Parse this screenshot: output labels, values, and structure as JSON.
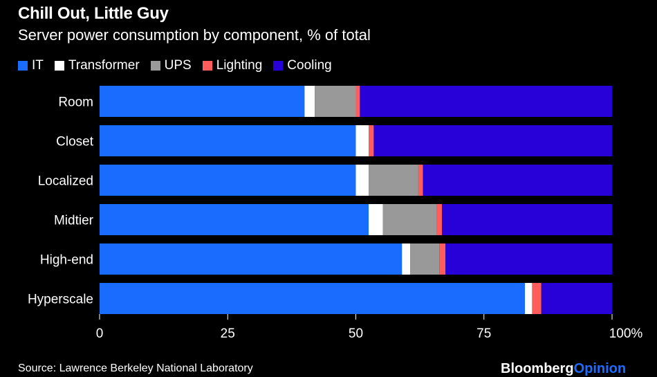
{
  "chart_data": {
    "type": "bar",
    "orientation": "horizontal",
    "stacked": true,
    "title": "Chill Out, Little Guy",
    "subtitle": "Server power consumption by component, % of total",
    "categories": [
      "Room",
      "Closet",
      "Localized",
      "Midtier",
      "High-end",
      "Hyperscale"
    ],
    "series": [
      {
        "name": "IT",
        "color": "#1a6cff",
        "values": [
          40,
          50,
          50,
          52.5,
          59,
          83
        ]
      },
      {
        "name": "Transformer",
        "color": "#ffffff",
        "values": [
          2,
          2.5,
          2.5,
          2.8,
          1.6,
          1.4
        ]
      },
      {
        "name": "UPS",
        "color": "#999999",
        "values": [
          8,
          0,
          9.7,
          10.5,
          5.7,
          0
        ]
      },
      {
        "name": "Lighting",
        "color": "#ff5c5c",
        "values": [
          0.8,
          1,
          0.9,
          1,
          1.2,
          1.8
        ]
      },
      {
        "name": "Cooling",
        "color": "#2800d8",
        "values": [
          49.2,
          46.5,
          36.9,
          33.2,
          32.5,
          13.8
        ]
      }
    ],
    "xlim": [
      0,
      100
    ],
    "xticks": [
      "0",
      "25",
      "50",
      "75",
      "100%"
    ],
    "xtick_values": [
      0,
      25,
      50,
      75,
      100
    ],
    "legend_position": "top-left",
    "grid": false
  },
  "source": "Source: Lawrence Berkeley National Laboratory",
  "logo": {
    "part1": "Bloomberg",
    "part2": "Opinion"
  }
}
